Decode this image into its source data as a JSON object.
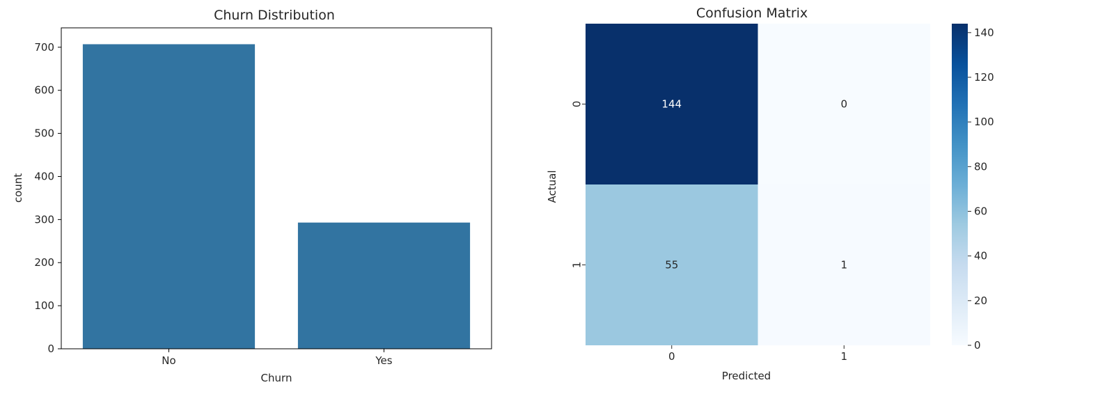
{
  "chart_data": [
    {
      "type": "bar",
      "title": "Churn Distribution",
      "xlabel": "Churn",
      "ylabel": "count",
      "categories": [
        "No",
        "Yes"
      ],
      "values": [
        707,
        293
      ],
      "ylim": [
        0,
        745
      ],
      "yticks": [
        0,
        100,
        200,
        300,
        400,
        500,
        600,
        700
      ],
      "bar_color": "#3274a1",
      "grid": false
    },
    {
      "type": "heatmap",
      "title": "Confusion Matrix",
      "xlabel": "Predicted",
      "ylabel": "Actual",
      "x_categories": [
        "0",
        "1"
      ],
      "y_categories": [
        "0",
        "1"
      ],
      "matrix": [
        [
          144,
          0
        ],
        [
          55,
          1
        ]
      ],
      "annotations": [
        [
          "144",
          "0"
        ],
        [
          "55",
          "1"
        ]
      ],
      "colormap": "Blues",
      "colorbar_range": [
        0,
        144
      ],
      "colorbar_ticks": [
        0,
        20,
        40,
        60,
        80,
        100,
        120,
        140
      ],
      "colorbar_position": "right"
    }
  ]
}
